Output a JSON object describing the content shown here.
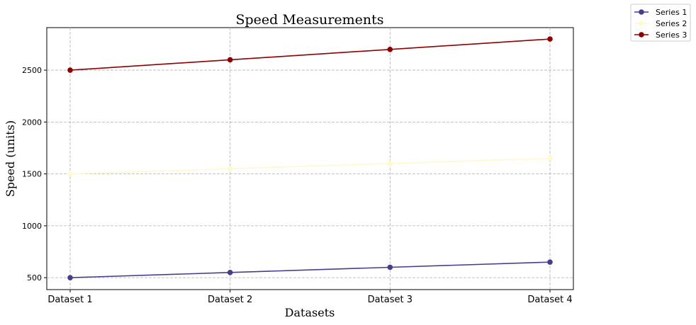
{
  "chart_data": {
    "type": "line",
    "title": "Speed Measurements",
    "xlabel": "Datasets",
    "ylabel": "Speed (units)",
    "categories": [
      "Dataset 1",
      "Dataset 2",
      "Dataset 3",
      "Dataset 4"
    ],
    "yticks": [
      500,
      1000,
      1500,
      2000,
      2500
    ],
    "ylim": [
      385,
      2910
    ],
    "grid": true,
    "legend_position": "top-right, outside plot",
    "series": [
      {
        "name": "Series 1",
        "color": "#483d8b",
        "values": [
          500,
          550,
          600,
          650
        ]
      },
      {
        "name": "Series 2",
        "color": "#fffacd",
        "values": [
          1500,
          1550,
          1600,
          1650
        ]
      },
      {
        "name": "Series 3",
        "color": "#8b0000",
        "values": [
          2500,
          2600,
          2700,
          2800
        ]
      }
    ]
  }
}
